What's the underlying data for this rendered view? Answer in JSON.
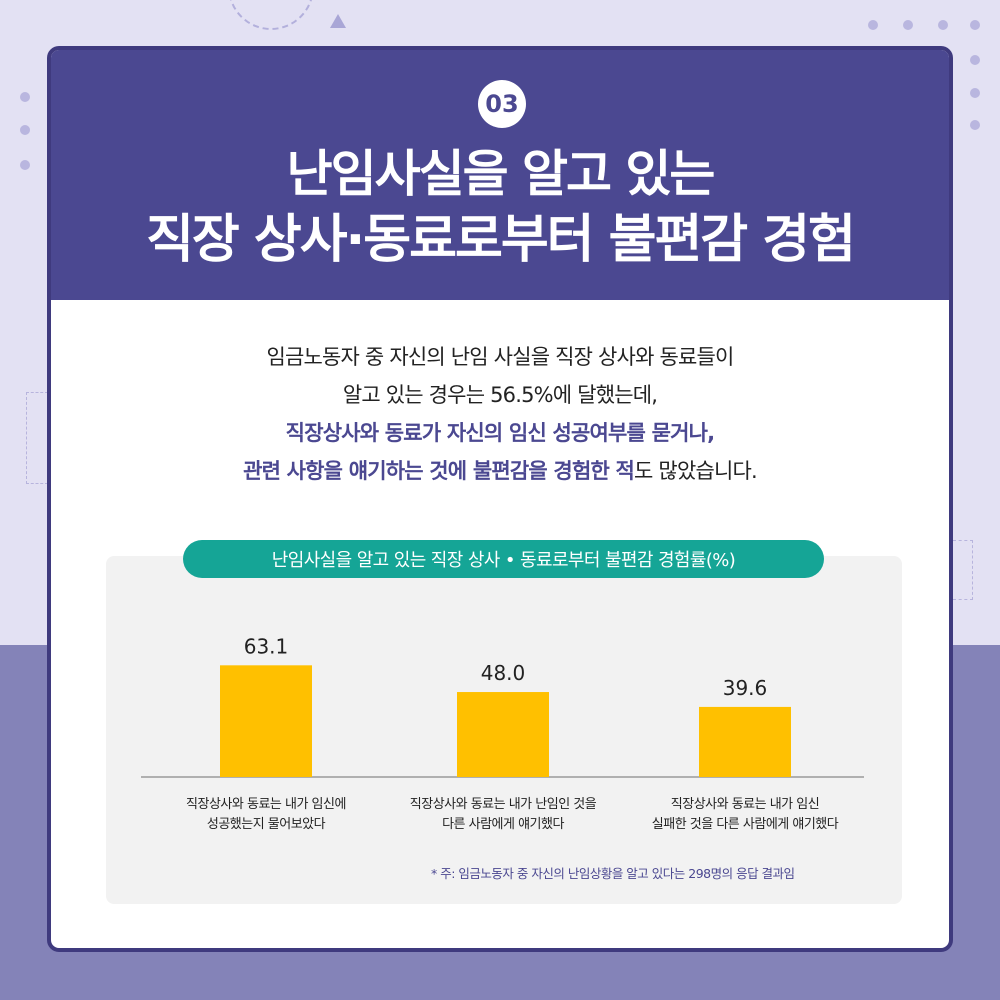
{
  "header": {
    "badge": "03",
    "title_line1": "난임사실을 알고 있는",
    "title_line2": "직장 상사·동료로부터 불편감 경험"
  },
  "description": {
    "line1": "임금노동자 중 자신의 난임 사실을 직장 상사와 동료들이",
    "line2": "알고 있는 경우는 56.5%에 달했는데,",
    "line3": "직장상사와 동료가 자신의 임신 성공여부를 묻거나,",
    "line4_highlight": "관련 사항을 얘기하는 것에 불편감을 경험한 적",
    "line4_rest": "도 많았습니다."
  },
  "colors": {
    "header_bg": "#4b4891",
    "accent_teal": "#15a596",
    "bar": "#ffc000",
    "highlight_text": "#4b4891"
  },
  "chart_data": {
    "type": "bar",
    "title": "난임사실을 알고 있는 직장 상사 • 동료로부터 불편감 경험률(%)",
    "categories": [
      [
        "직장상사와 동료는 내가 임신에",
        "성공했는지 물어보았다"
      ],
      [
        "직장상사와 동료는 내가 난임인 것을",
        "다른 사람에게 얘기했다"
      ],
      [
        "직장상사와 동료는 내가 임신",
        "실패한 것을 다른 사람에게 얘기했다"
      ]
    ],
    "values": [
      63.1,
      48.0,
      39.6
    ],
    "value_labels": [
      "63.1",
      "48.0",
      "39.6"
    ],
    "grid": false,
    "footnote": "* 주: 임금노동자 중 자신의 난임상황을 알고 있다는 298명의 응답 결과임"
  }
}
